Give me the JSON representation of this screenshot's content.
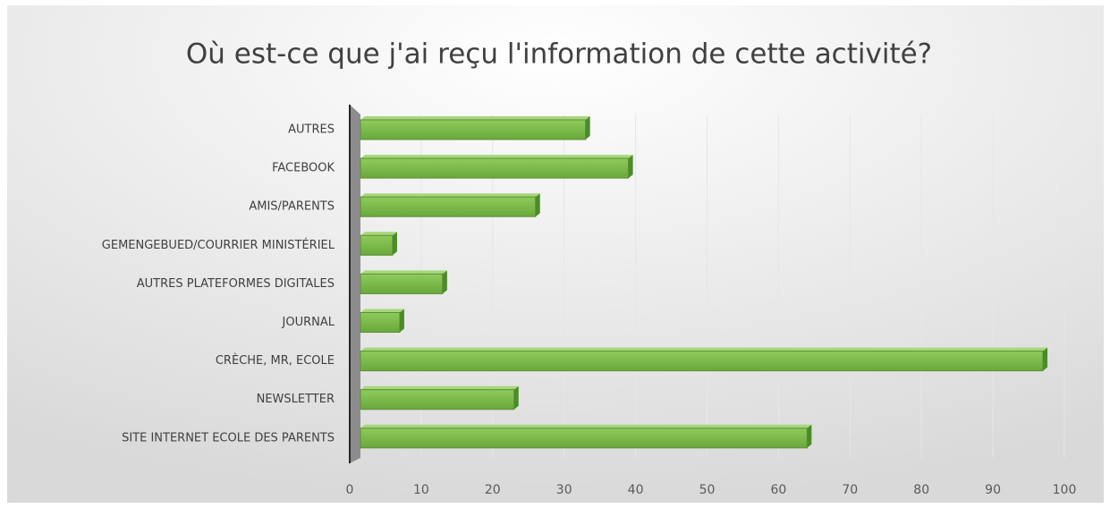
{
  "chart_data": {
    "type": "bar",
    "orientation": "horizontal",
    "title": "Où est-ce que j'ai reçu l'information de cette activité?",
    "categories": [
      "AUTRES",
      "FACEBOOK",
      "AMIS/PARENTS",
      "GEMENGEBUED/COURRIER MINISTÉRIEL",
      "AUTRES PLATEFORMES DIGITALES",
      "JOURNAL",
      "CRÈCHE, MR, ECOLE",
      "NEWSLETTER",
      "SITE INTERNET ECOLE DES PARENTS"
    ],
    "values": [
      33,
      39,
      26,
      6,
      13,
      7,
      97,
      23,
      64
    ],
    "color": "#7cb84b",
    "xlim": [
      0,
      100
    ],
    "xticks": [
      0,
      10,
      20,
      30,
      40,
      50,
      60,
      70,
      80,
      90,
      100
    ],
    "grid": true
  }
}
